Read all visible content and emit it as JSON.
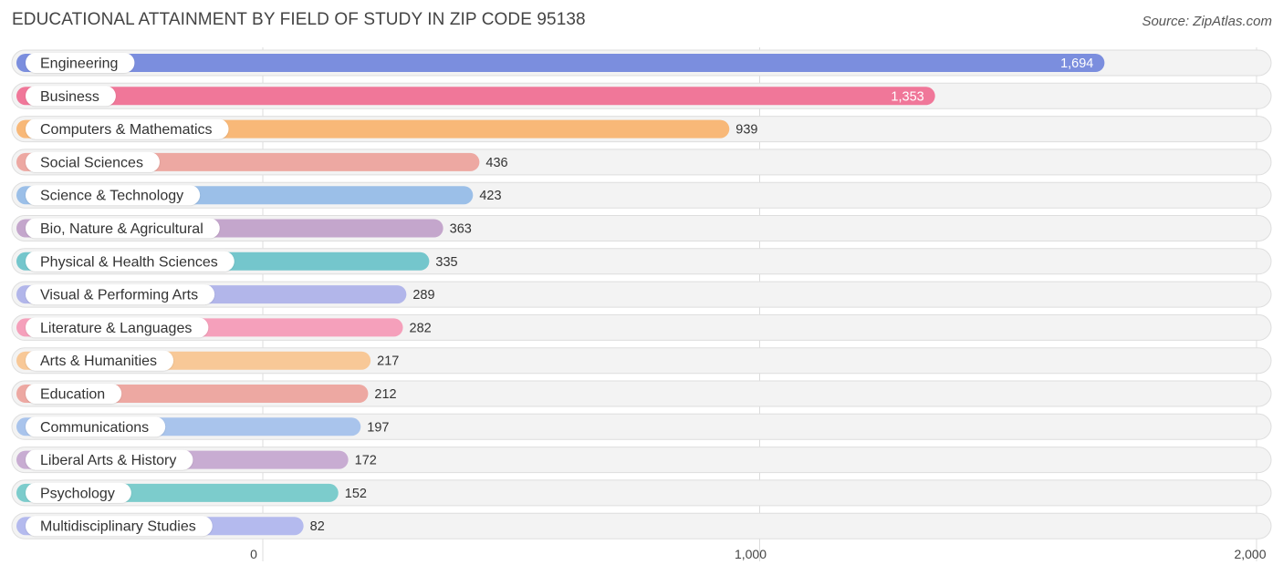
{
  "chart_data": {
    "type": "bar",
    "orientation": "horizontal",
    "title": "EDUCATIONAL ATTAINMENT BY FIELD OF STUDY IN ZIP CODE 95138",
    "source": "Source: ZipAtlas.com",
    "xlim": [
      0,
      2000
    ],
    "ticks": [
      0,
      1000,
      2000
    ],
    "tick_labels": [
      "0",
      "1,000",
      "2,000"
    ],
    "categories": [
      "Engineering",
      "Business",
      "Computers & Mathematics",
      "Social Sciences",
      "Science & Technology",
      "Bio, Nature & Agricultural",
      "Physical & Health Sciences",
      "Visual & Performing Arts",
      "Literature & Languages",
      "Arts & Humanities",
      "Education",
      "Communications",
      "Liberal Arts & History",
      "Psychology",
      "Multidisciplinary Studies"
    ],
    "values": [
      1694,
      1353,
      939,
      436,
      423,
      363,
      335,
      289,
      282,
      217,
      212,
      197,
      172,
      152,
      82
    ],
    "value_labels": [
      "1,694",
      "1,353",
      "939",
      "436",
      "423",
      "363",
      "335",
      "289",
      "282",
      "217",
      "212",
      "197",
      "172",
      "152",
      "82"
    ],
    "colors": [
      "#7b8ede",
      "#f07799",
      "#f8b878",
      "#eda8a2",
      "#9bbfe8",
      "#c4a6cc",
      "#74c6cc",
      "#b2b6ea",
      "#f5a0bb",
      "#f8c897",
      "#eda8a2",
      "#a9c4ec",
      "#c8acd2",
      "#7ccccc",
      "#b4baee"
    ]
  }
}
